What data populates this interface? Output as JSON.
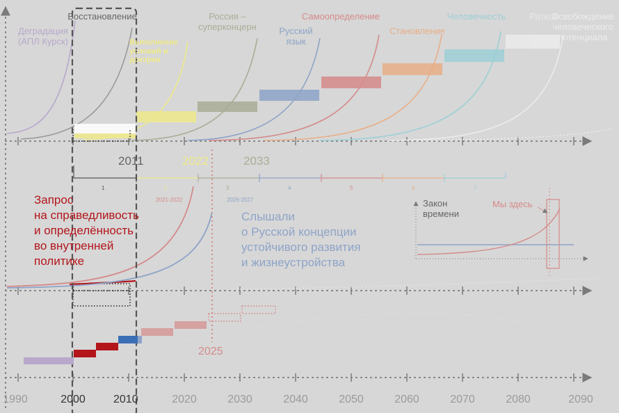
{
  "colors": {
    "background": "#d7d7d7",
    "axis": "#7a7a7a",
    "degradation": "#b7a8cc",
    "restoration": "#8f8f8f",
    "yellow": "#eee98a",
    "russia": "#a9ad96",
    "language": "#8ea4c8",
    "self": "#d58a8a",
    "becoming": "#e8ae86",
    "humanity": "#9ccfd6",
    "dark_red": "#b3151b",
    "blue": "#3a6fb5"
  },
  "stages": {
    "degradation": "Деградация\n(АПЛ Курск)",
    "restoration": "Восстановление",
    "yellow_caption": "Выполнение\nусловий  и\nдоктрин",
    "russia": "Россия –\nсуперконцерн",
    "language": "Русский\nязык",
    "self_determination": "Самоопределение",
    "becoming": "Становление",
    "humanity": "Человечность",
    "ratkov": "Ратков",
    "release": "Освобождение\nчеловеческого\nпотенциала"
  },
  "top_markers": [
    "2011",
    "2022",
    "2033"
  ],
  "segments": [
    "1",
    "2",
    "3",
    "4",
    "5",
    "6",
    "7"
  ],
  "small_dates": [
    "2021-2022",
    "2026-2027"
  ],
  "left_text": "Запрос\nна справедливость\nи определённость\nво внутренней\nполитике",
  "center_text": "Слышали\nо Русской концепции\nустойчивого развития\nи жизнеустройства",
  "inset": {
    "law": "Закон\nвремени",
    "here": "Мы здесь"
  },
  "marker_2025": "2025",
  "years": [
    "1990",
    "2000",
    "2010",
    "2020",
    "2030",
    "2040",
    "2050",
    "2060",
    "2070",
    "2080",
    "2090"
  ]
}
